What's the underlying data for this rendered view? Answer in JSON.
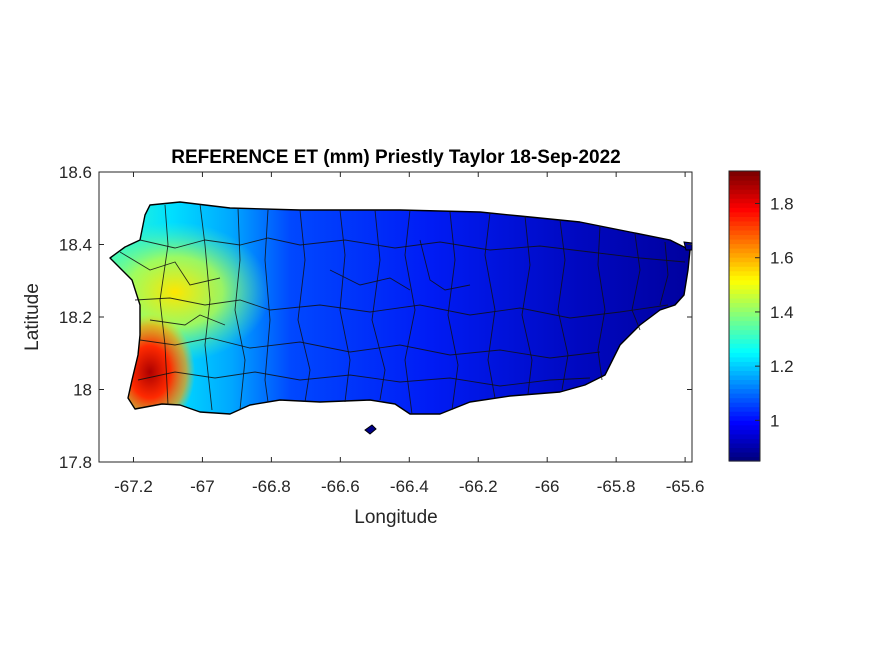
{
  "chart_data": {
    "type": "heatmap",
    "title": "REFERENCE ET (mm) Priestly Taylor 18-Sep-2022",
    "xlabel": "Longitude",
    "ylabel": "Latitude",
    "xlim": [
      -67.3,
      -65.58
    ],
    "ylim": [
      17.8,
      18.6
    ],
    "x_ticks": [
      -67.2,
      -67,
      -66.8,
      -66.6,
      -66.4,
      -66.2,
      -66,
      -65.8,
      -65.6
    ],
    "x_tick_labels": [
      "-67.2",
      "-67",
      "-66.8",
      "-66.6",
      "-66.4",
      "-66.2",
      "-66",
      "-65.8",
      "-65.6"
    ],
    "y_ticks": [
      17.8,
      18,
      18.2,
      18.4,
      18.6
    ],
    "y_tick_labels": [
      "17.8",
      "18",
      "18.2",
      "18.4",
      "18.6"
    ],
    "colorbar": {
      "colormap": "jet",
      "range": [
        0.85,
        1.92
      ],
      "ticks": [
        1,
        1.2,
        1.4,
        1.6,
        1.8
      ],
      "tick_labels": [
        "1",
        "1.2",
        "1.4",
        "1.6",
        "1.8"
      ]
    },
    "grid": false,
    "field_samples": [
      {
        "lon": -67.18,
        "lat": 18.0,
        "value": 1.9
      },
      {
        "lon": -67.1,
        "lat": 18.32,
        "value": 1.5
      },
      {
        "lon": -67.05,
        "lat": 18.45,
        "value": 1.28
      },
      {
        "lon": -66.95,
        "lat": 18.22,
        "value": 1.35
      },
      {
        "lon": -66.8,
        "lat": 18.35,
        "value": 1.1
      },
      {
        "lon": -66.5,
        "lat": 18.3,
        "value": 1.02
      },
      {
        "lon": -66.2,
        "lat": 18.25,
        "value": 0.95
      },
      {
        "lon": -65.9,
        "lat": 18.2,
        "value": 0.9
      },
      {
        "lon": -65.7,
        "lat": 18.3,
        "value": 0.88
      }
    ]
  }
}
